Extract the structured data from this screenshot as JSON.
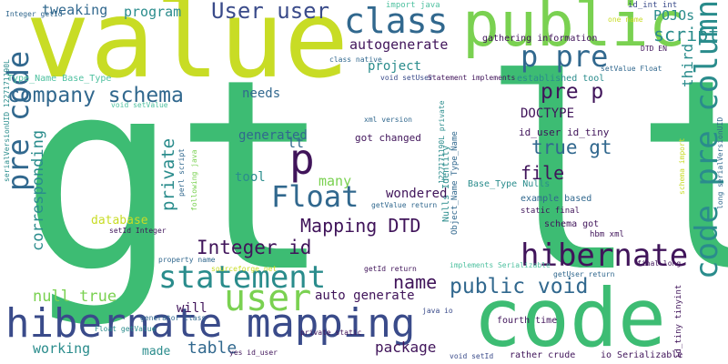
{
  "colors": {
    "green": "#3dbc73",
    "lime": "#c8dc25",
    "dark_purple": "#40145a",
    "navy": "#3a4b8a",
    "teal": "#2a8c8c",
    "blue": "#31688e",
    "light_green": "#7ad151",
    "pale_teal": "#4fc1a0"
  },
  "words": [
    {
      "id": "gt_lt",
      "text": "gt lt",
      "color": "green"
    },
    {
      "id": "value",
      "text": "value",
      "color": "lime"
    },
    {
      "id": "code",
      "text": "code",
      "color": "green"
    },
    {
      "id": "public",
      "text": "public",
      "color": "light_green"
    },
    {
      "id": "hibernate_mapping",
      "text": "hibernate mapping",
      "color": "navy"
    },
    {
      "id": "code_pre_column",
      "text": "code pre column",
      "color": "teal"
    },
    {
      "id": "class",
      "text": "class",
      "color": "blue"
    },
    {
      "id": "p_pre",
      "text": "p pre",
      "color": "blue"
    },
    {
      "id": "pre_code",
      "text": "pre code",
      "color": "blue"
    },
    {
      "id": "hibernate",
      "text": "hibernate",
      "color": "dark_purple"
    },
    {
      "id": "user",
      "text": "user",
      "color": "light_green"
    },
    {
      "id": "statement",
      "text": "statement",
      "color": "teal"
    },
    {
      "id": "float",
      "text": "Float",
      "color": "blue"
    },
    {
      "id": "p",
      "text": "p",
      "color": "dark_purple"
    },
    {
      "id": "user_user",
      "text": "User user",
      "color": "navy"
    },
    {
      "id": "company_schema",
      "text": "company schema",
      "color": "blue"
    },
    {
      "id": "public_void",
      "text": "public void",
      "color": "blue"
    },
    {
      "id": "pre_p",
      "text": "pre p",
      "color": "dark_purple"
    },
    {
      "id": "script",
      "text": "script",
      "color": "teal"
    },
    {
      "id": "true_gt",
      "text": "true gt",
      "color": "blue"
    },
    {
      "id": "mapping_dtd",
      "text": "Mapping DTD",
      "color": "dark_purple"
    },
    {
      "id": "integer_id",
      "text": "Integer id",
      "color": "dark_purple"
    },
    {
      "id": "name",
      "text": "name",
      "color": "dark_purple"
    },
    {
      "id": "file",
      "text": "file",
      "color": "dark_purple"
    },
    {
      "id": "null_true",
      "text": "null true",
      "color": "light_green"
    },
    {
      "id": "table",
      "text": "table",
      "color": "blue"
    },
    {
      "id": "autogenerate",
      "text": "autogenerate",
      "color": "dark_purple"
    },
    {
      "id": "private",
      "text": "private",
      "color": "teal"
    },
    {
      "id": "corresponding",
      "text": "corresponding",
      "color": "teal"
    },
    {
      "id": "package",
      "text": "package",
      "color": "dark_purple"
    },
    {
      "id": "auto_generate",
      "text": "auto generate",
      "color": "dark_purple"
    },
    {
      "id": "program",
      "text": "program",
      "color": "teal"
    },
    {
      "id": "tweaking",
      "text": "tweaking",
      "color": "blue"
    },
    {
      "id": "project",
      "text": "project",
      "color": "teal"
    },
    {
      "id": "pojos",
      "text": "POJOs",
      "color": "teal"
    },
    {
      "id": "working",
      "text": "working",
      "color": "teal"
    },
    {
      "id": "generated",
      "text": "generated",
      "color": "blue"
    },
    {
      "id": "wondered",
      "text": "wondered",
      "color": "dark_purple"
    },
    {
      "id": "tool",
      "text": "tool",
      "color": "teal"
    },
    {
      "id": "many",
      "text": "many",
      "color": "light_green"
    },
    {
      "id": "lt",
      "text": "lt",
      "color": "blue"
    },
    {
      "id": "needs",
      "text": "needs",
      "color": "blue"
    },
    {
      "id": "third",
      "text": "third",
      "color": "teal"
    },
    {
      "id": "doctype",
      "text": "DOCTYPE",
      "color": "dark_purple"
    },
    {
      "id": "database",
      "text": "database",
      "color": "lime"
    },
    {
      "id": "will",
      "text": "will",
      "color": "dark_purple"
    },
    {
      "id": "made",
      "text": "made",
      "color": "teal"
    },
    {
      "id": "fourth_time",
      "text": "fourth time",
      "color": "dark_purple"
    },
    {
      "id": "rather_crude",
      "text": "rather crude",
      "color": "dark_purple"
    },
    {
      "id": "got_changed",
      "text": "got changed",
      "color": "dark_purple"
    },
    {
      "id": "id_user_id_tiny",
      "text": "id_user id_tiny",
      "color": "dark_purple"
    },
    {
      "id": "established_tool",
      "text": "established tool",
      "color": "teal"
    },
    {
      "id": "gathering_information",
      "text": "gathering information",
      "color": "dark_purple"
    },
    {
      "id": "statement_implements",
      "text": "Statement implements",
      "color": "dark_purple"
    },
    {
      "id": "class_native",
      "text": "class native",
      "color": "blue"
    },
    {
      "id": "void_setuser",
      "text": "void setUser",
      "color": "navy"
    },
    {
      "id": "setvalue_float",
      "text": "setValue Float",
      "color": "blue"
    },
    {
      "id": "dtd_en",
      "text": "DTD EN",
      "color": "dark_purple"
    },
    {
      "id": "type_name_base_type",
      "text": "Type_Name Base_Type",
      "color": "pale_teal"
    },
    {
      "id": "import_java",
      "text": "import java",
      "color": "pale_teal"
    },
    {
      "id": "integer_getid",
      "text": "Integer getId",
      "color": "blue"
    },
    {
      "id": "id_int_int",
      "text": "id_int int",
      "color": "navy"
    },
    {
      "id": "one_name",
      "text": "one name",
      "color": "lime"
    },
    {
      "id": "void_setvalue",
      "text": "void setValue",
      "color": "pale_teal"
    },
    {
      "id": "xml_version",
      "text": "xml version",
      "color": "blue"
    },
    {
      "id": "perl_script",
      "text": "perl script",
      "color": "blue"
    },
    {
      "id": "following_java",
      "text": "following java",
      "color": "light_green"
    },
    {
      "id": "setid_integer",
      "text": "setId Integer",
      "color": "dark_purple"
    },
    {
      "id": "property_name",
      "text": "property name",
      "color": "blue"
    },
    {
      "id": "getvalue_return",
      "text": "getValue return",
      "color": "blue"
    },
    {
      "id": "base_type_nulls",
      "text": "Base_Type Nulls",
      "color": "teal"
    },
    {
      "id": "example_based",
      "text": "example based",
      "color": "blue"
    },
    {
      "id": "static_final",
      "text": "static final",
      "color": "dark_purple"
    },
    {
      "id": "schema_got",
      "text": "schema got",
      "color": "dark_purple"
    },
    {
      "id": "hbm_xml",
      "text": "hbm xml",
      "color": "dark_purple"
    },
    {
      "id": "getuser_return",
      "text": "getUser return",
      "color": "blue"
    },
    {
      "id": "final_long",
      "text": "final long",
      "color": "dark_purple"
    },
    {
      "id": "implements_serializable",
      "text": "implements Serializable",
      "color": "pale_teal"
    },
    {
      "id": "sourceforge_net",
      "text": "sourceforge net",
      "color": "lime"
    },
    {
      "id": "getid_return",
      "text": "getId return",
      "color": "dark_purple"
    },
    {
      "id": "generator_class",
      "text": "generator class",
      "color": "blue"
    },
    {
      "id": "float_getvalue",
      "text": "Float getValue",
      "color": "teal"
    },
    {
      "id": "private_static",
      "text": "private static",
      "color": "dark_purple"
    },
    {
      "id": "yes_id_user",
      "text": "yes id_user",
      "color": "dark_purple"
    },
    {
      "id": "java_io",
      "text": "java io",
      "color": "navy"
    },
    {
      "id": "void_setid",
      "text": "void setId",
      "color": "navy"
    },
    {
      "id": "io_serializable",
      "text": "io Serializable",
      "color": "dark_purple"
    },
    {
      "id": "serialversionuid_1",
      "text": "serialVersionUID 1227171190L",
      "color": "teal"
    },
    {
      "id": "uid_private",
      "text": "1227171190L private",
      "color": "teal"
    },
    {
      "id": "nulls_identity",
      "text": "Nulls Identity",
      "color": "teal"
    },
    {
      "id": "object_name_type_name",
      "text": "Object_Name Type_Name",
      "color": "blue"
    },
    {
      "id": "schema_import",
      "text": "schema import",
      "color": "lime"
    },
    {
      "id": "long_serialversionuid",
      "text": "long serialVersionUID",
      "color": "blue"
    },
    {
      "id": "id_tiny_tinyint",
      "text": "id_tiny tinyint",
      "color": "dark_purple"
    }
  ]
}
